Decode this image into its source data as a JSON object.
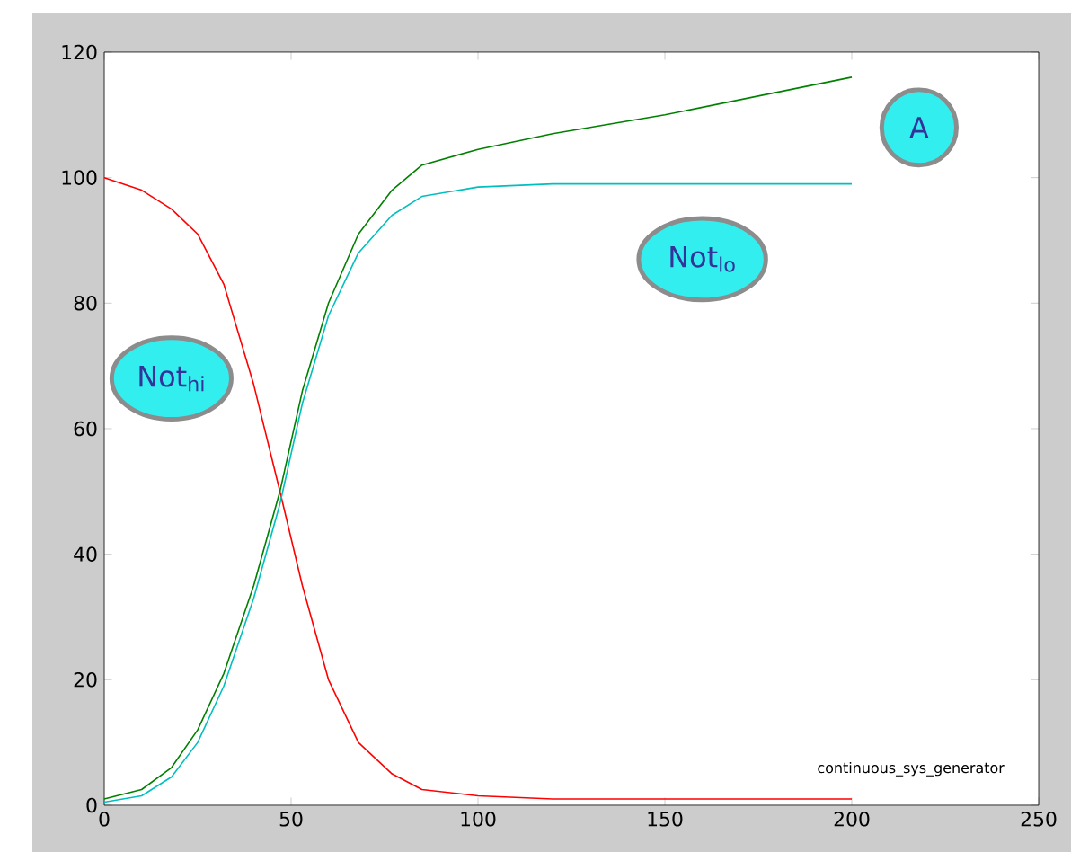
{
  "chart_data": {
    "type": "line",
    "x": [
      0,
      10,
      18,
      25,
      32,
      40,
      47,
      53,
      60,
      68,
      77,
      85,
      100,
      120,
      150,
      200
    ],
    "series": [
      {
        "name": "Not$_{hi}$",
        "color": "#ff0000",
        "values": [
          100,
          98,
          95,
          91,
          83,
          67,
          50,
          35,
          20,
          10,
          5,
          2.5,
          1.5,
          1,
          1,
          1
        ]
      },
      {
        "name": "A",
        "color": "#008000",
        "values": [
          1,
          2.5,
          6,
          12,
          21,
          35,
          50,
          66,
          80,
          91,
          98,
          102,
          104.5,
          107,
          110,
          116
        ]
      },
      {
        "name": "Not$_{lo}$",
        "color": "#00bfbf",
        "values": [
          0.5,
          1.5,
          4.5,
          10,
          19,
          33,
          48,
          64,
          78,
          88,
          94,
          97,
          98.5,
          99,
          99,
          99
        ]
      }
    ],
    "xlim": [
      0,
      250
    ],
    "xticks": [
      0,
      50,
      100,
      150,
      200,
      250
    ],
    "ylim": [
      0,
      120
    ],
    "yticks": [
      0,
      20,
      40,
      60,
      80,
      100,
      120
    ],
    "grid": false,
    "legend": false,
    "marker": "none",
    "line_style": "solid",
    "annotations": [
      "continuous_sys_generator"
    ]
  }
}
